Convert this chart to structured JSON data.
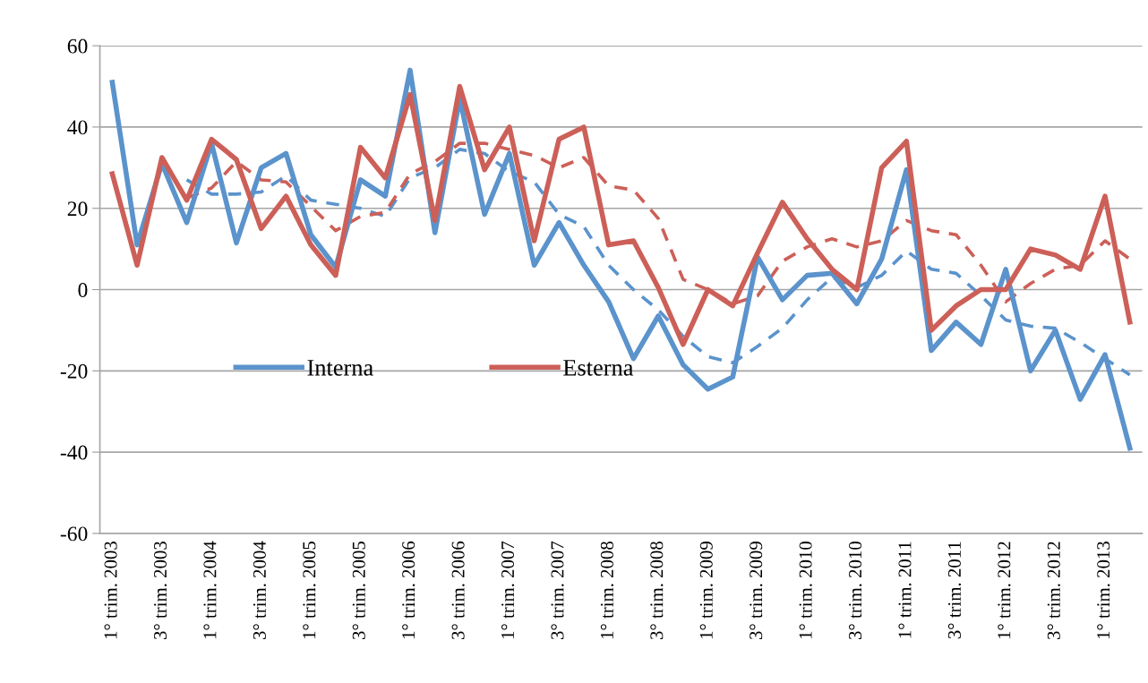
{
  "chart_data": {
    "type": "line",
    "categories": [
      "1° trim. 2003",
      null,
      "3° trim. 2003",
      null,
      "1° trim. 2004",
      null,
      "3° trim. 2004",
      null,
      "1° trim. 2005",
      null,
      "3° trim. 2005",
      null,
      "1° trim. 2006",
      null,
      "3° trim. 2006",
      null,
      "1° trim. 2007",
      null,
      "3° trim. 2007",
      null,
      "1° trim. 2008",
      null,
      "3° trim. 2008",
      null,
      "1° trim. 2009",
      null,
      "3° trim. 2009",
      null,
      "1° trim. 2010",
      null,
      "3° trim. 2010",
      null,
      "1° trim. 2011",
      null,
      "3° trim. 2011",
      null,
      "1° trim. 2012",
      null,
      "3° trim. 2012",
      null,
      "1° trim. 2013",
      null
    ],
    "series": [
      {
        "name": "Interna",
        "color": "#5b93cc",
        "line_style": "solid",
        "values": [
          51,
          11,
          31,
          16.5,
          36,
          11.5,
          30,
          33.5,
          13.5,
          5.5,
          27,
          23,
          54,
          14,
          47,
          18.5,
          33.5,
          6,
          16.5,
          6,
          -3,
          -17,
          -6.5,
          -18.5,
          -24.5,
          -21.5,
          8,
          -2.5,
          3.5,
          4,
          -3.5,
          7.5,
          29.5,
          -15,
          -8,
          -13.5,
          5,
          -20,
          -10,
          -27,
          -16,
          -39
        ]
      },
      {
        "name": "Esterna",
        "color": "#cc6058",
        "line_style": "solid",
        "values": [
          28.5,
          6,
          32.5,
          22,
          37,
          32,
          15,
          23,
          11,
          3.5,
          35,
          27.5,
          48,
          17,
          50,
          29.5,
          40,
          12,
          37,
          40,
          11,
          12,
          0.5,
          -13.5,
          0,
          -4,
          9,
          21.5,
          12.5,
          5,
          0,
          30,
          36.5,
          -10,
          -4,
          0,
          0,
          10,
          8.5,
          5,
          23,
          -8
        ]
      },
      {
        "color": "#5b93cc",
        "line_style": "dashed",
        "values": [
          null,
          null,
          null,
          27,
          23.5,
          23.5,
          24,
          28,
          22,
          21,
          20,
          18,
          27.5,
          30,
          34.5,
          33.5,
          29,
          26.5,
          18.5,
          15.5,
          6,
          0,
          -5,
          -11.5,
          -16.5,
          -18,
          -14,
          -9.5,
          -2.5,
          3,
          0.5,
          3.5,
          9.5,
          5,
          4,
          -1.5,
          -7.5,
          -9,
          -9.5,
          -13,
          -17,
          -21
        ]
      },
      {
        "color": "#cc6058",
        "line_style": "dashed",
        "values": [
          null,
          null,
          null,
          22.5,
          25,
          31.5,
          27,
          26.5,
          20.5,
          14.5,
          18,
          19,
          28.5,
          31.5,
          36,
          36,
          34.5,
          33,
          30,
          32.5,
          25.5,
          24.5,
          17.5,
          2.5,
          0,
          -3.5,
          -1.5,
          7,
          10.5,
          12.5,
          10.5,
          12,
          17,
          14.5,
          13.5,
          6,
          -3,
          1.5,
          5,
          6,
          12,
          7.5
        ]
      }
    ],
    "ylim": [
      -60,
      60
    ],
    "yticks": [
      -60,
      -40,
      -20,
      0,
      20,
      40,
      60
    ],
    "grid": "y",
    "legend": "bottom left",
    "marker": "none"
  }
}
